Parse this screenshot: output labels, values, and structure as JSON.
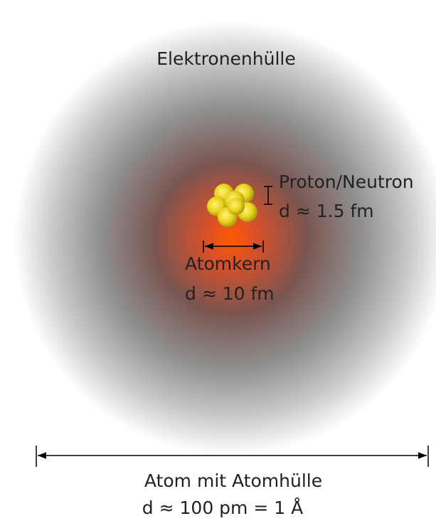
{
  "labels": {
    "shell": "Elektronenhülle",
    "nucleon_name": "Proton/Neutron",
    "nucleon_size": "d ≈ 1.5 fm",
    "nucleus_name": "Atomkern",
    "nucleus_size": "d ≈ 10 fm",
    "atom_name": "Atom mit Atomhülle",
    "atom_size": "d ≈ 100 pm = 1 Å"
  }
}
